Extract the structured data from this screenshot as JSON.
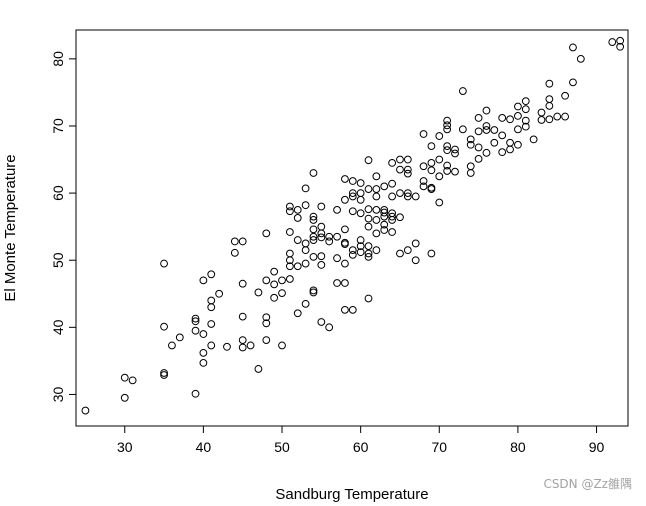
{
  "chart_data": {
    "type": "scatter",
    "xlabel": "Sandburg Temperature",
    "ylabel": "El Monte Temperature",
    "xlim": [
      23.8,
      94.0
    ],
    "ylim": [
      25.3,
      84.3
    ],
    "xticks": [
      30,
      40,
      50,
      60,
      70,
      80,
      90
    ],
    "yticks": [
      30,
      40,
      50,
      60,
      70,
      80
    ],
    "grid": false,
    "point_color": "#000000",
    "points": [
      [
        25,
        27.6
      ],
      [
        30,
        32.5
      ],
      [
        31,
        32.1
      ],
      [
        30,
        29.5
      ],
      [
        35,
        49.5
      ],
      [
        35,
        40.1
      ],
      [
        35,
        33.2
      ],
      [
        35,
        32.9
      ],
      [
        36,
        37.3
      ],
      [
        37,
        38.5
      ],
      [
        39,
        41.3
      ],
      [
        39,
        40.9
      ],
      [
        39,
        39.5
      ],
      [
        39,
        30.1
      ],
      [
        40,
        47
      ],
      [
        40,
        39
      ],
      [
        40,
        36.2
      ],
      [
        40,
        34.7
      ],
      [
        41,
        47.9
      ],
      [
        41,
        44
      ],
      [
        41,
        43
      ],
      [
        41,
        40.5
      ],
      [
        41,
        37.3
      ],
      [
        42,
        45
      ],
      [
        43,
        37.1
      ],
      [
        44,
        52.8
      ],
      [
        44,
        51.1
      ],
      [
        45,
        52.8
      ],
      [
        45,
        46.5
      ],
      [
        45,
        41.6
      ],
      [
        45,
        38.1
      ],
      [
        45,
        37
      ],
      [
        46,
        37.3
      ],
      [
        47,
        45.2
      ],
      [
        47,
        33.8
      ],
      [
        48,
        54
      ],
      [
        48,
        47
      ],
      [
        48,
        41.5
      ],
      [
        48,
        40.6
      ],
      [
        48,
        38.1
      ],
      [
        49,
        48.3
      ],
      [
        49,
        46.4
      ],
      [
        49,
        44.4
      ],
      [
        50,
        47
      ],
      [
        50,
        45.1
      ],
      [
        50,
        37.3
      ],
      [
        51,
        58
      ],
      [
        51,
        57.3
      ],
      [
        51,
        54.2
      ],
      [
        51,
        51
      ],
      [
        51,
        50
      ],
      [
        51,
        49.1
      ],
      [
        51,
        47.2
      ],
      [
        52,
        57.5
      ],
      [
        52,
        56.3
      ],
      [
        52,
        53
      ],
      [
        52,
        49.1
      ],
      [
        52,
        42.1
      ],
      [
        53,
        60.7
      ],
      [
        53,
        58.2
      ],
      [
        53,
        52.5
      ],
      [
        53,
        51.5
      ],
      [
        53,
        49.5
      ],
      [
        53,
        43.5
      ],
      [
        54,
        63
      ],
      [
        54,
        56.5
      ],
      [
        54,
        56
      ],
      [
        54,
        54.6
      ],
      [
        54,
        53.5
      ],
      [
        54,
        53
      ],
      [
        54,
        50.5
      ],
      [
        54,
        45.5
      ],
      [
        54,
        45.2
      ],
      [
        55,
        58
      ],
      [
        55,
        55
      ],
      [
        55,
        54
      ],
      [
        55,
        53.4
      ],
      [
        55,
        50.6
      ],
      [
        55,
        49.3
      ],
      [
        55,
        40.8
      ],
      [
        56,
        53.5
      ],
      [
        56,
        52.8
      ],
      [
        56,
        40
      ],
      [
        57,
        57.5
      ],
      [
        57,
        53.5
      ],
      [
        57,
        50.3
      ],
      [
        57,
        46.6
      ],
      [
        58,
        62.1
      ],
      [
        58,
        59
      ],
      [
        58,
        54.6
      ],
      [
        58,
        52.6
      ],
      [
        58,
        52.4
      ],
      [
        58,
        49.5
      ],
      [
        58,
        46.6
      ],
      [
        58,
        42.6
      ],
      [
        59,
        61.8
      ],
      [
        59,
        60
      ],
      [
        59,
        59.5
      ],
      [
        59,
        57.3
      ],
      [
        59,
        51.5
      ],
      [
        59,
        50.8
      ],
      [
        59,
        42.6
      ],
      [
        60,
        61.5
      ],
      [
        60,
        60
      ],
      [
        60,
        59
      ],
      [
        60,
        57
      ],
      [
        60,
        53
      ],
      [
        60,
        52.1
      ],
      [
        60,
        51.2
      ],
      [
        61,
        64.9
      ],
      [
        61,
        60.6
      ],
      [
        61,
        57.6
      ],
      [
        61,
        56.2
      ],
      [
        61,
        55
      ],
      [
        61,
        52.1
      ],
      [
        61,
        51
      ],
      [
        61,
        50.5
      ],
      [
        61,
        44.3
      ],
      [
        62,
        62.5
      ],
      [
        62,
        60.6
      ],
      [
        62,
        59.5
      ],
      [
        62,
        57.5
      ],
      [
        62,
        56
      ],
      [
        62,
        54
      ],
      [
        62,
        51.5
      ],
      [
        63,
        61
      ],
      [
        63,
        57.5
      ],
      [
        63,
        57.1
      ],
      [
        63,
        56.5
      ],
      [
        63,
        55.3
      ],
      [
        63,
        54.5
      ],
      [
        64,
        64.5
      ],
      [
        64,
        61.4
      ],
      [
        64,
        59.5
      ],
      [
        64,
        57
      ],
      [
        64,
        56.5
      ],
      [
        64,
        56
      ],
      [
        64,
        54.2
      ],
      [
        65,
        65
      ],
      [
        65,
        63.5
      ],
      [
        65,
        60
      ],
      [
        65,
        56.4
      ],
      [
        65,
        51
      ],
      [
        66,
        65
      ],
      [
        66,
        63.5
      ],
      [
        66,
        62.9
      ],
      [
        66,
        60
      ],
      [
        66,
        59.5
      ],
      [
        66,
        51.5
      ],
      [
        67,
        59.5
      ],
      [
        67,
        52.5
      ],
      [
        67,
        50
      ],
      [
        68,
        68.8
      ],
      [
        68,
        64
      ],
      [
        68,
        61.8
      ],
      [
        68,
        61
      ],
      [
        69,
        67
      ],
      [
        69,
        64.5
      ],
      [
        69,
        63.4
      ],
      [
        69,
        60.8
      ],
      [
        69,
        60.6
      ],
      [
        69,
        51
      ],
      [
        70,
        68.5
      ],
      [
        70,
        65
      ],
      [
        70,
        62.5
      ],
      [
        70,
        58.6
      ],
      [
        71,
        70.8
      ],
      [
        71,
        70.1
      ],
      [
        71,
        69.5
      ],
      [
        71,
        67
      ],
      [
        71,
        66.4
      ],
      [
        71,
        64.1
      ],
      [
        71,
        63.3
      ],
      [
        72,
        66.5
      ],
      [
        72,
        65.9
      ],
      [
        72,
        63.2
      ],
      [
        73,
        75.2
      ],
      [
        73,
        69.5
      ],
      [
        74,
        68
      ],
      [
        74,
        64
      ],
      [
        74,
        63
      ],
      [
        74,
        67.2
      ],
      [
        75,
        71.2
      ],
      [
        75,
        69.2
      ],
      [
        75,
        66.8
      ],
      [
        75,
        65.1
      ],
      [
        76,
        72.3
      ],
      [
        76,
        70
      ],
      [
        76,
        69.4
      ],
      [
        76,
        66
      ],
      [
        77,
        69.4
      ],
      [
        77,
        67.5
      ],
      [
        78,
        71.2
      ],
      [
        78,
        68.6
      ],
      [
        78,
        66.1
      ],
      [
        79,
        71
      ],
      [
        79,
        67.5
      ],
      [
        79,
        66.5
      ],
      [
        80,
        72.9
      ],
      [
        80,
        71.5
      ],
      [
        80,
        69.5
      ],
      [
        80,
        67.2
      ],
      [
        81,
        73.7
      ],
      [
        81,
        72.5
      ],
      [
        81,
        70.8
      ],
      [
        81,
        69.9
      ],
      [
        82,
        68
      ],
      [
        83,
        72
      ],
      [
        83,
        70.9
      ],
      [
        84,
        76.3
      ],
      [
        84,
        74
      ],
      [
        84,
        73
      ],
      [
        84,
        71
      ],
      [
        85,
        71.4
      ],
      [
        86,
        71.4
      ],
      [
        86,
        74.5
      ],
      [
        87,
        81.7
      ],
      [
        87,
        76.5
      ],
      [
        88,
        80
      ],
      [
        92,
        82.5
      ],
      [
        93,
        82.7
      ],
      [
        93,
        81.8
      ]
    ]
  },
  "watermark": "CSDN @Zz雒隅"
}
